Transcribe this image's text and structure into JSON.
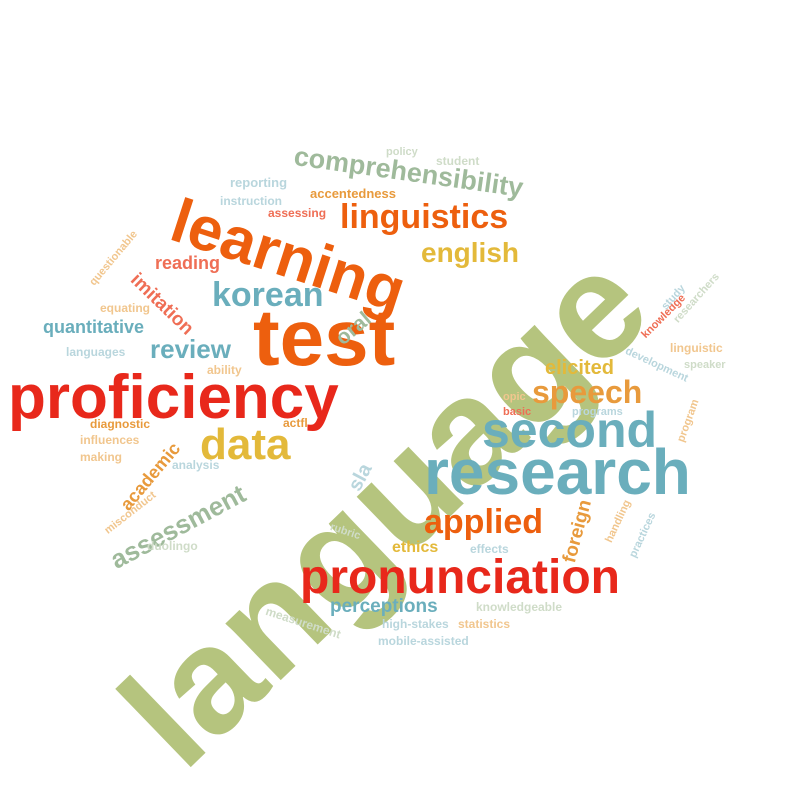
{
  "palette": {
    "olive": "#b5c47e",
    "sage": "#9fba9b",
    "teal": "#6aaebc",
    "orange": "#ed5f0e",
    "red": "#e8281b",
    "gold": "#e3b93a",
    "amber": "#e89a3c",
    "salmon": "#ef6e55",
    "peach": "#f1c68e",
    "pale_teal": "#b9d6dd",
    "pale_sage": "#cfdcc8"
  },
  "words": [
    {
      "text": "language",
      "color": "olive"
    },
    {
      "text": "proficiency",
      "color": "red"
    },
    {
      "text": "test",
      "color": "orange"
    },
    {
      "text": "learning",
      "color": "orange"
    },
    {
      "text": "research",
      "color": "teal"
    },
    {
      "text": "second",
      "color": "teal"
    },
    {
      "text": "pronunciation",
      "color": "red"
    },
    {
      "text": "linguistics",
      "color": "orange"
    },
    {
      "text": "comprehensibility",
      "color": "sage"
    },
    {
      "text": "korean",
      "color": "teal"
    },
    {
      "text": "english",
      "color": "gold"
    },
    {
      "text": "data",
      "color": "gold"
    },
    {
      "text": "speech",
      "color": "amber"
    },
    {
      "text": "applied",
      "color": "orange"
    },
    {
      "text": "assessment",
      "color": "sage"
    },
    {
      "text": "review",
      "color": "teal"
    },
    {
      "text": "elicited",
      "color": "gold"
    },
    {
      "text": "perceptions",
      "color": "teal"
    },
    {
      "text": "quantitative",
      "color": "teal"
    },
    {
      "text": "reading",
      "color": "salmon"
    },
    {
      "text": "imitation",
      "color": "salmon"
    },
    {
      "text": "oral",
      "color": "sage"
    },
    {
      "text": "academic",
      "color": "amber"
    },
    {
      "text": "foreign",
      "color": "amber"
    },
    {
      "text": "ethics",
      "color": "gold"
    },
    {
      "text": "sla",
      "color": "pale_teal"
    },
    {
      "text": "accentedness",
      "color": "amber"
    },
    {
      "text": "assessing",
      "color": "salmon"
    },
    {
      "text": "instruction",
      "color": "pale_teal"
    },
    {
      "text": "reporting",
      "color": "pale_teal"
    },
    {
      "text": "student",
      "color": "pale_sage"
    },
    {
      "text": "equating",
      "color": "peach"
    },
    {
      "text": "languages",
      "color": "pale_teal"
    },
    {
      "text": "ability",
      "color": "peach"
    },
    {
      "text": "actfl",
      "color": "amber"
    },
    {
      "text": "diagnostic",
      "color": "amber"
    },
    {
      "text": "influences",
      "color": "peach"
    },
    {
      "text": "making",
      "color": "peach"
    },
    {
      "text": "analysis",
      "color": "pale_teal"
    },
    {
      "text": "misconduct",
      "color": "peach"
    },
    {
      "text": "questionable",
      "color": "peach"
    },
    {
      "text": "duolingo",
      "color": "pale_sage"
    },
    {
      "text": "rubric",
      "color": "pale_sage"
    },
    {
      "text": "effects",
      "color": "pale_teal"
    },
    {
      "text": "measurement",
      "color": "pale_sage"
    },
    {
      "text": "high-stakes",
      "color": "pale_teal"
    },
    {
      "text": "statistics",
      "color": "peach"
    },
    {
      "text": "mobile-assisted",
      "color": "pale_teal"
    },
    {
      "text": "knowledgeable",
      "color": "pale_sage"
    },
    {
      "text": "handling",
      "color": "peach"
    },
    {
      "text": "practices",
      "color": "pale_teal"
    },
    {
      "text": "program",
      "color": "peach"
    },
    {
      "text": "programs",
      "color": "pale_teal"
    },
    {
      "text": "basic",
      "color": "salmon"
    },
    {
      "text": "opic",
      "color": "peach"
    },
    {
      "text": "development",
      "color": "pale_teal"
    },
    {
      "text": "linguistic",
      "color": "peach"
    },
    {
      "text": "knowledge",
      "color": "salmon"
    },
    {
      "text": "study",
      "color": "pale_teal"
    },
    {
      "text": "researchers",
      "color": "pale_sage"
    },
    {
      "text": "speaker",
      "color": "pale_sage"
    },
    {
      "text": "policy",
      "color": "pale_sage"
    }
  ]
}
